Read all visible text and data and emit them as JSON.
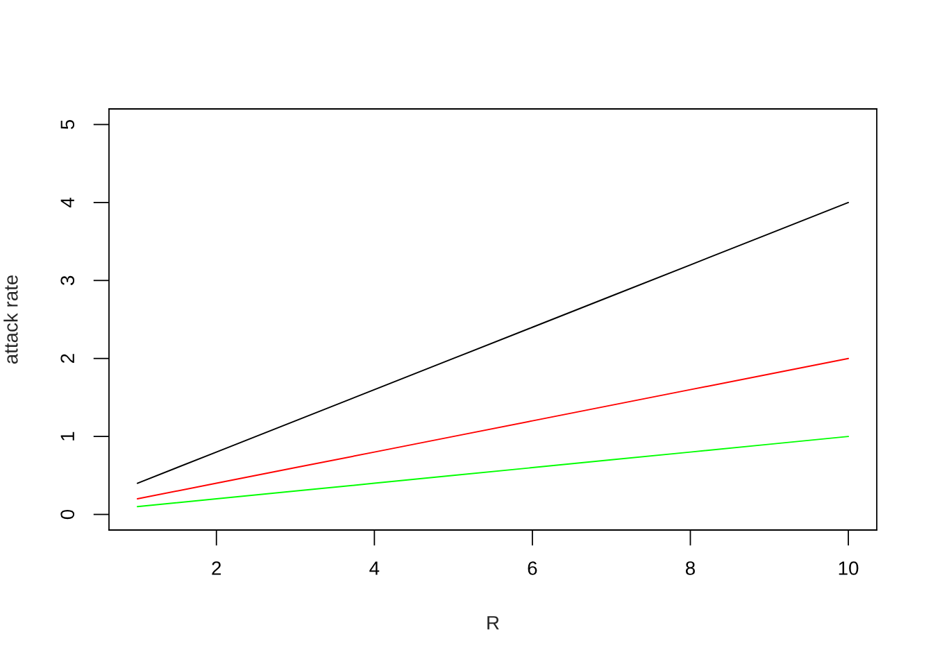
{
  "chart_data": {
    "type": "line",
    "xlabel": "R",
    "ylabel": "attack rate",
    "x": [
      1,
      2,
      3,
      4,
      5,
      6,
      7,
      8,
      9,
      10
    ],
    "series": [
      {
        "color": "#000000",
        "values": [
          0.4,
          0.8,
          1.2,
          1.6,
          2.0,
          2.4,
          2.8,
          3.2,
          3.6,
          4.0
        ]
      },
      {
        "color": "#ff0000",
        "values": [
          0.2,
          0.4,
          0.6,
          0.8,
          1.0,
          1.2,
          1.4,
          1.6,
          1.8,
          2.0
        ]
      },
      {
        "color": "#00ff00",
        "values": [
          0.1,
          0.2,
          0.3,
          0.4,
          0.5,
          0.6,
          0.7,
          0.8,
          0.9,
          1.0
        ]
      }
    ],
    "xlim": [
      0.64,
      10.36
    ],
    "ylim": [
      -0.2,
      5.2
    ],
    "xticks": [
      2,
      4,
      6,
      8,
      10
    ],
    "yticks": [
      0,
      1,
      2,
      3,
      4,
      5
    ],
    "grid": false,
    "legend": false,
    "marker": "none",
    "line_style": "solid"
  }
}
